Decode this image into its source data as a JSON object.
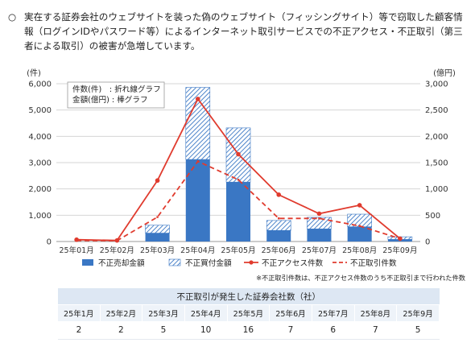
{
  "intro": {
    "bullet": "○",
    "text": "実在する証券会社のウェブサイトを装った偽のウェブサイト（フィッシングサイト）等で窃取した顧客情報（ログインIDやパスワード等）によるインターネット取引サービスでの不正アクセス・不正取引（第三者による取引）の被害が急増しています。"
  },
  "chart_data": {
    "type": "bar",
    "categories": [
      "25年01月",
      "25年02月",
      "25年03月",
      "25年04月",
      "25年05月",
      "25年06月",
      "25年07月",
      "25年08月",
      "25年09月"
    ],
    "y_left": {
      "unit": "(件)",
      "ylim": [
        0,
        6000
      ],
      "ticks": [
        "0",
        "1,000",
        "2,000",
        "3,000",
        "4,000",
        "5,000",
        "6,000"
      ]
    },
    "y_right": {
      "unit": "(億円)",
      "ylim": [
        0,
        3000
      ],
      "ticks": [
        "0",
        "500",
        "1,000",
        "1,500",
        "2,000",
        "2,500",
        "3,000"
      ]
    },
    "inset": [
      "件数(件)　: 折れ線グラフ",
      "金額(億円) : 棒グラフ"
    ],
    "series": [
      {
        "name": "不正売却金額",
        "kind": "bar",
        "axis": "right",
        "color": "#3a77c4",
        "values": [
          0,
          0,
          160,
          1560,
          1130,
          210,
          240,
          280,
          40
        ]
      },
      {
        "name": "不正買付金額",
        "kind": "bar-hatched",
        "axis": "right",
        "color": "#3a77c4",
        "values": [
          0,
          0,
          150,
          1370,
          1030,
          190,
          220,
          240,
          50
        ]
      },
      {
        "name": "不正アクセス件数",
        "kind": "line",
        "axis": "left",
        "color": "#e03b2e",
        "values": [
          70,
          40,
          2320,
          5420,
          3320,
          1780,
          1060,
          1380,
          110
        ]
      },
      {
        "name": "不正取引件数",
        "kind": "dashed-line",
        "axis": "left",
        "color": "#e03b2e",
        "values": [
          40,
          30,
          930,
          3050,
          2350,
          880,
          880,
          590,
          110
        ]
      }
    ]
  },
  "footnote": "※不正取引件数は、不正アクセス件数のうち不正取引まで行われた件数",
  "table": {
    "title": "不正取引が発生した証券会社数（社）",
    "headers": [
      "25年1月",
      "25年2月",
      "25年3月",
      "25年4月",
      "25年5月",
      "25年6月",
      "25年7月",
      "25年8月",
      "25年9月"
    ],
    "values": [
      "2",
      "2",
      "5",
      "10",
      "16",
      "7",
      "6",
      "7",
      "5"
    ]
  }
}
